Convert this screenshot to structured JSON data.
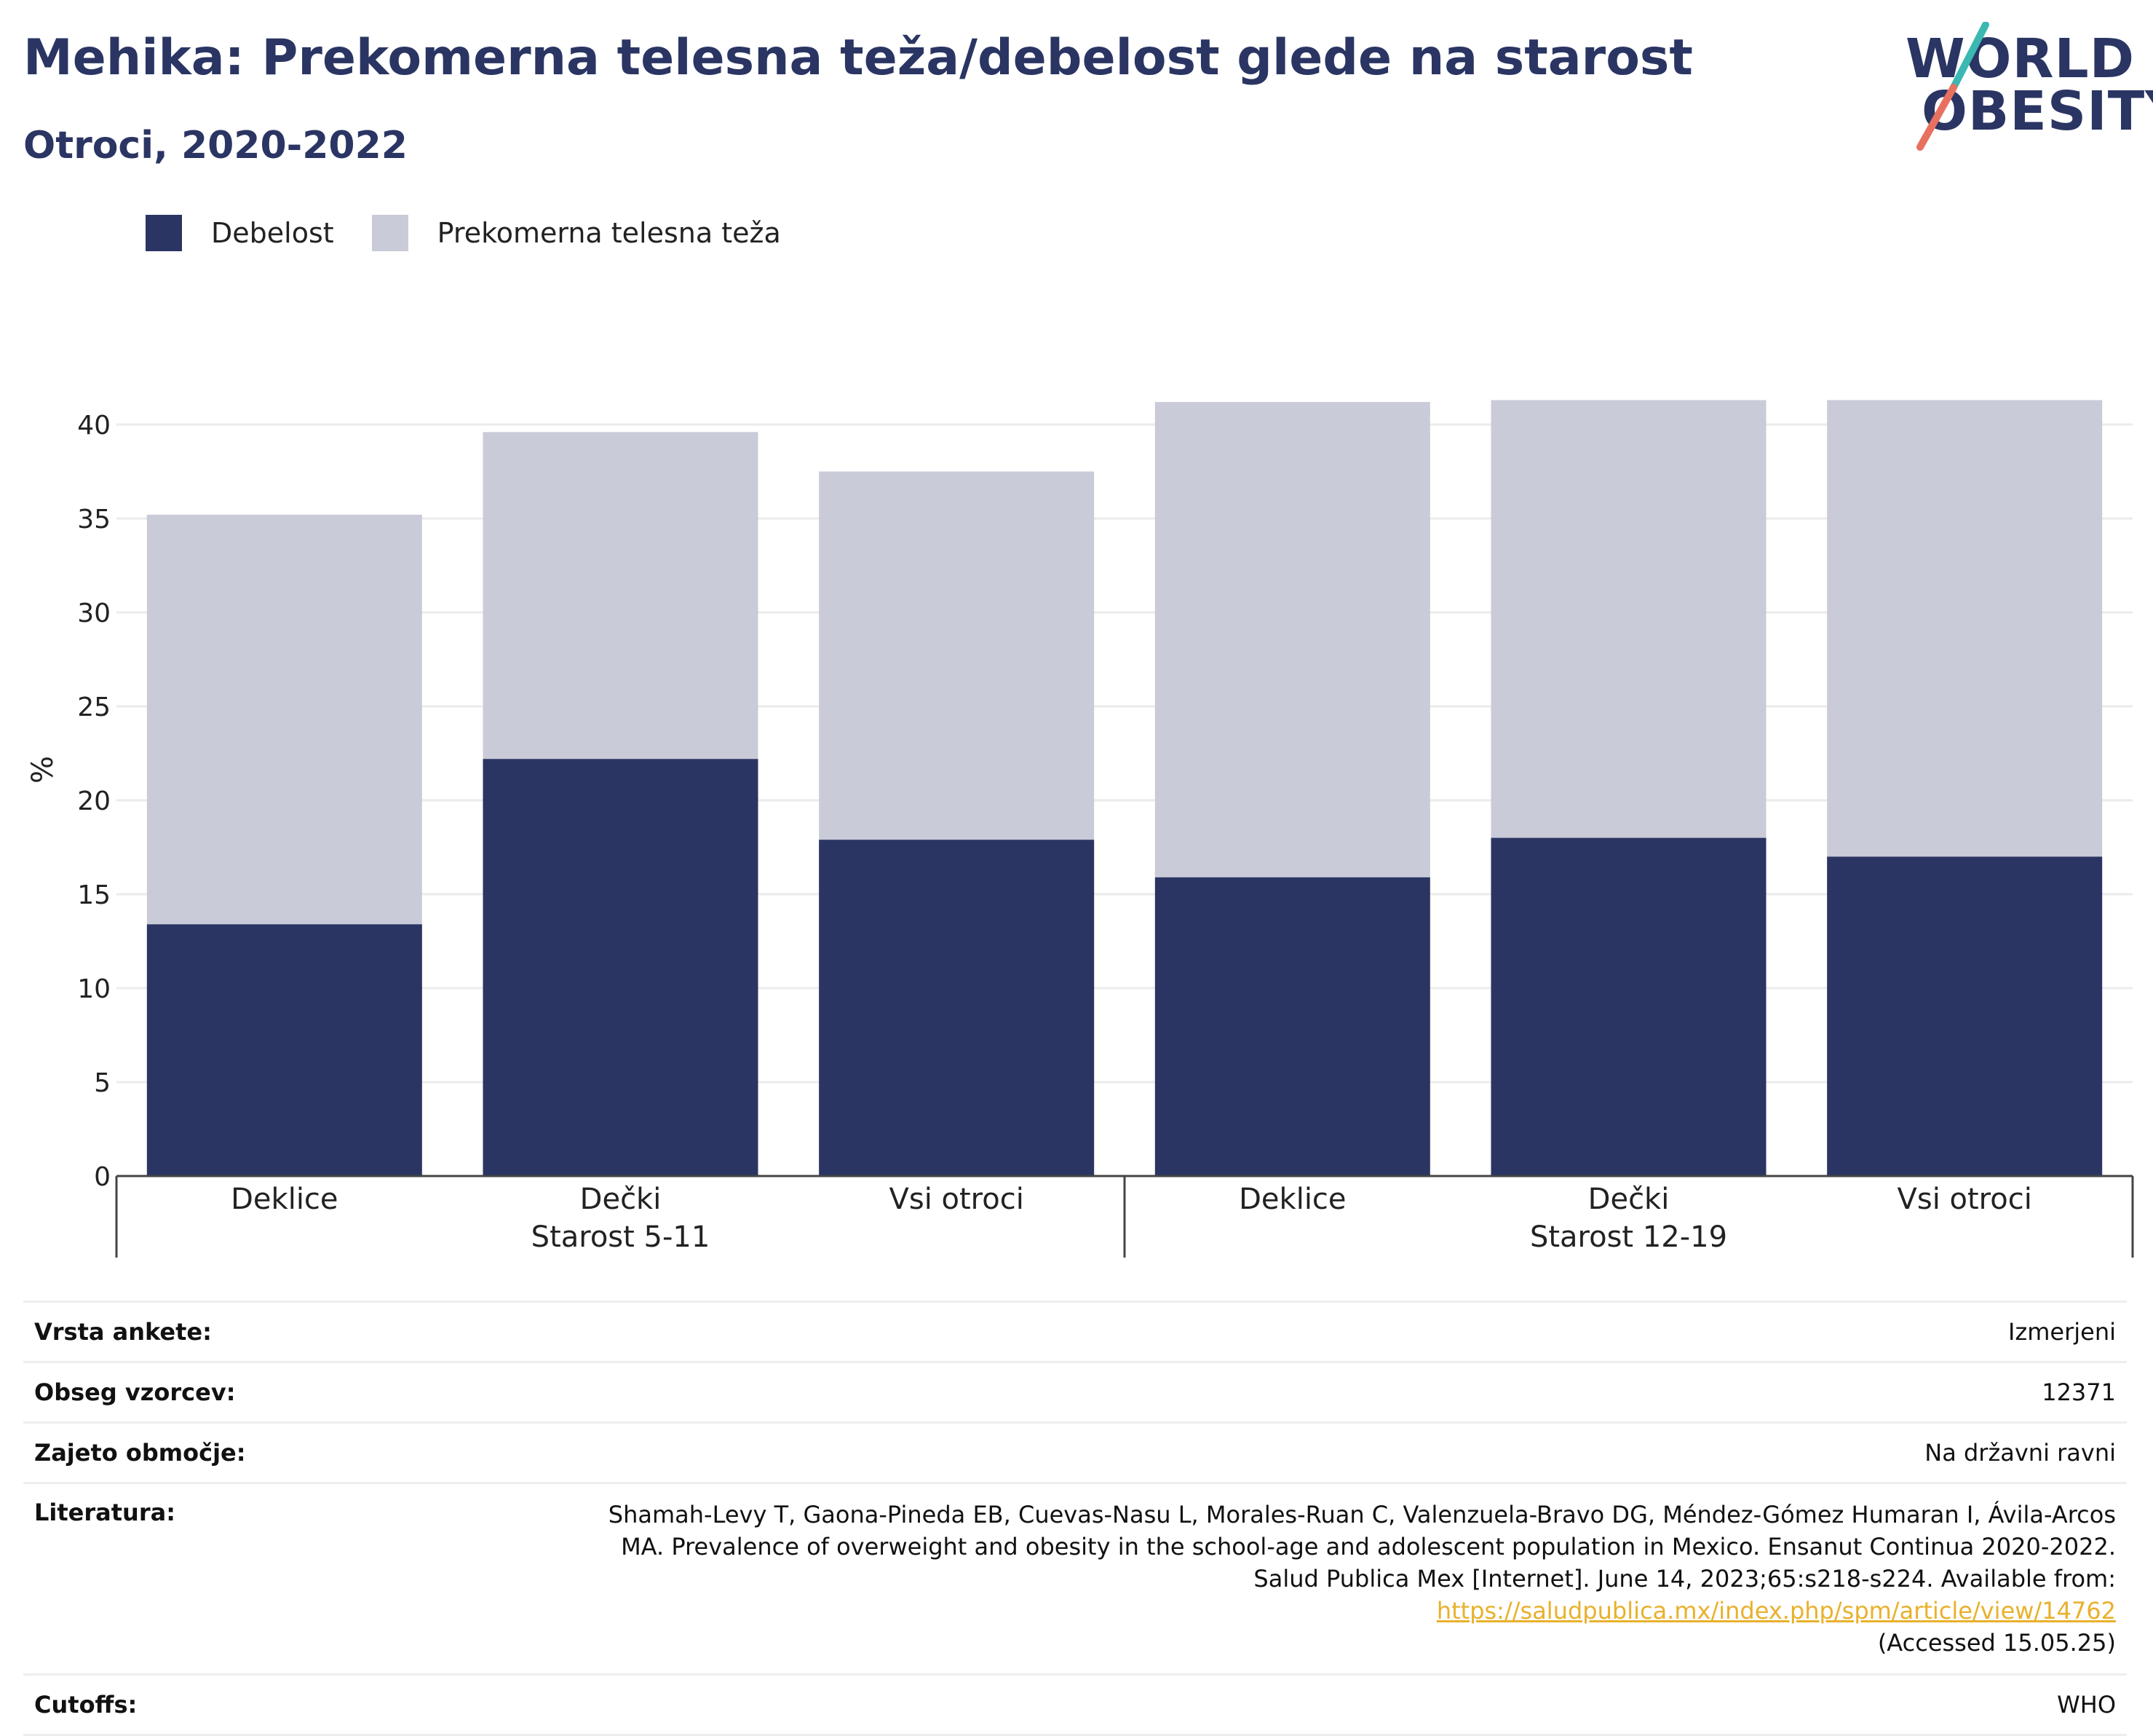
{
  "header": {
    "title": "Mehika: Prekomerna telesna teža/debelost glede na starost",
    "subtitle": "Otroci, 2020-2022"
  },
  "logo": {
    "line1": "WORLD",
    "line2": "OBESITY"
  },
  "colors": {
    "obesity": "#2a3563",
    "overweight": "#cacbd8",
    "accent_teal": "#3cb8b2",
    "accent_coral": "#e8705f",
    "link": "#e8b12c"
  },
  "chart_data": {
    "type": "bar",
    "stacked": true,
    "ylabel": "%",
    "ylim": [
      0,
      42
    ],
    "yticks": [
      0,
      5,
      10,
      15,
      20,
      25,
      30,
      35,
      40
    ],
    "grid": true,
    "legend_position": "top-left",
    "categories": [
      "Deklice",
      "Dečki",
      "Vsi otroci",
      "Deklice",
      "Dečki",
      "Vsi otroci"
    ],
    "groups": [
      {
        "label": "Starost 5-11",
        "count": 3
      },
      {
        "label": "Starost 12-19",
        "count": 3
      }
    ],
    "series": [
      {
        "name": "Debelost",
        "values": [
          13.4,
          22.2,
          17.9,
          15.9,
          18.0,
          17.0
        ]
      },
      {
        "name": "Prekomerna telesna teža",
        "values": [
          21.8,
          17.4,
          19.6,
          25.3,
          23.3,
          24.3
        ]
      }
    ]
  },
  "info": {
    "survey_type": {
      "label": "Vrsta ankete:",
      "value": "Izmerjeni"
    },
    "sample_size": {
      "label": "Obseg vzorcev:",
      "value": "12371"
    },
    "coverage": {
      "label": "Zajeto območje:",
      "value": "Na državni ravni"
    },
    "literature": {
      "label": "Literatura:",
      "text": "Shamah-Levy T, Gaona-Pineda EB, Cuevas-Nasu L, Morales-Ruan C, Valenzuela-Bravo DG, Méndez-Gómez Humaran I, Ávila-Arcos MA. Prevalence of overweight and obesity in the school-age and adolescent population in Mexico. Ensanut Continua 2020-2022. Salud Publica Mex [Internet]. June 14, 2023;65:s218-s224. Available from: ",
      "link": "https://saludpublica.mx/index.php/spm/article/view/14762",
      "accessed": "(Accessed 15.05.25)"
    },
    "cutoffs": {
      "label": "Cutoffs:",
      "value": "WHO"
    }
  }
}
